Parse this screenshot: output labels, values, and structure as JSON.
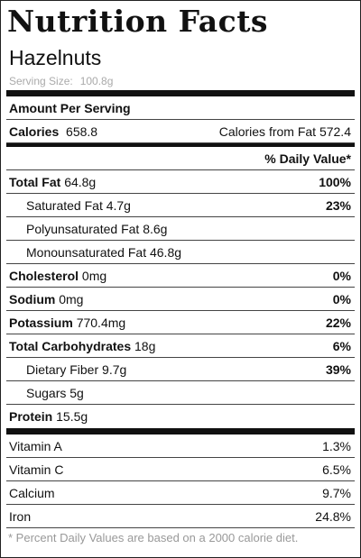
{
  "title": "Nutrition Facts",
  "food_name": "Hazelnuts",
  "serving": {
    "label": "Serving Size:",
    "value": "100.8g"
  },
  "amount_per_serving": "Amount Per Serving",
  "calories": {
    "label": "Calories",
    "value": "658.8",
    "fat_label": "Calories from Fat",
    "fat_value": "572.4"
  },
  "daily_value_header": "% Daily Value*",
  "nutrients": {
    "total_fat": {
      "label": "Total Fat",
      "amount": "64.8g",
      "dv": "100%"
    },
    "saturated_fat": {
      "label": "Saturated Fat",
      "amount": "4.7g",
      "dv": "23%"
    },
    "polyunsaturated_fat": {
      "label": "Polyunsaturated Fat",
      "amount": "8.6g"
    },
    "monounsaturated_fat": {
      "label": "Monounsaturated Fat",
      "amount": "46.8g"
    },
    "cholesterol": {
      "label": "Cholesterol",
      "amount": "0mg",
      "dv": "0%"
    },
    "sodium": {
      "label": "Sodium",
      "amount": "0mg",
      "dv": "0%"
    },
    "potassium": {
      "label": "Potassium",
      "amount": "770.4mg",
      "dv": "22%"
    },
    "total_carbohydrates": {
      "label": "Total Carbohydrates",
      "amount": "18g",
      "dv": "6%"
    },
    "dietary_fiber": {
      "label": "Dietary Fiber",
      "amount": "9.7g",
      "dv": "39%"
    },
    "sugars": {
      "label": "Sugars",
      "amount": "5g"
    },
    "protein": {
      "label": "Protein",
      "amount": "15.5g"
    }
  },
  "vitamins": [
    {
      "label": "Vitamin A",
      "value": "1.3%"
    },
    {
      "label": "Vitamin C",
      "value": "6.5%"
    },
    {
      "label": "Calcium",
      "value": "9.7%"
    },
    {
      "label": "Iron",
      "value": "24.8%"
    }
  ],
  "footnote": "* Percent Daily Values are based on a 2000 calorie diet."
}
